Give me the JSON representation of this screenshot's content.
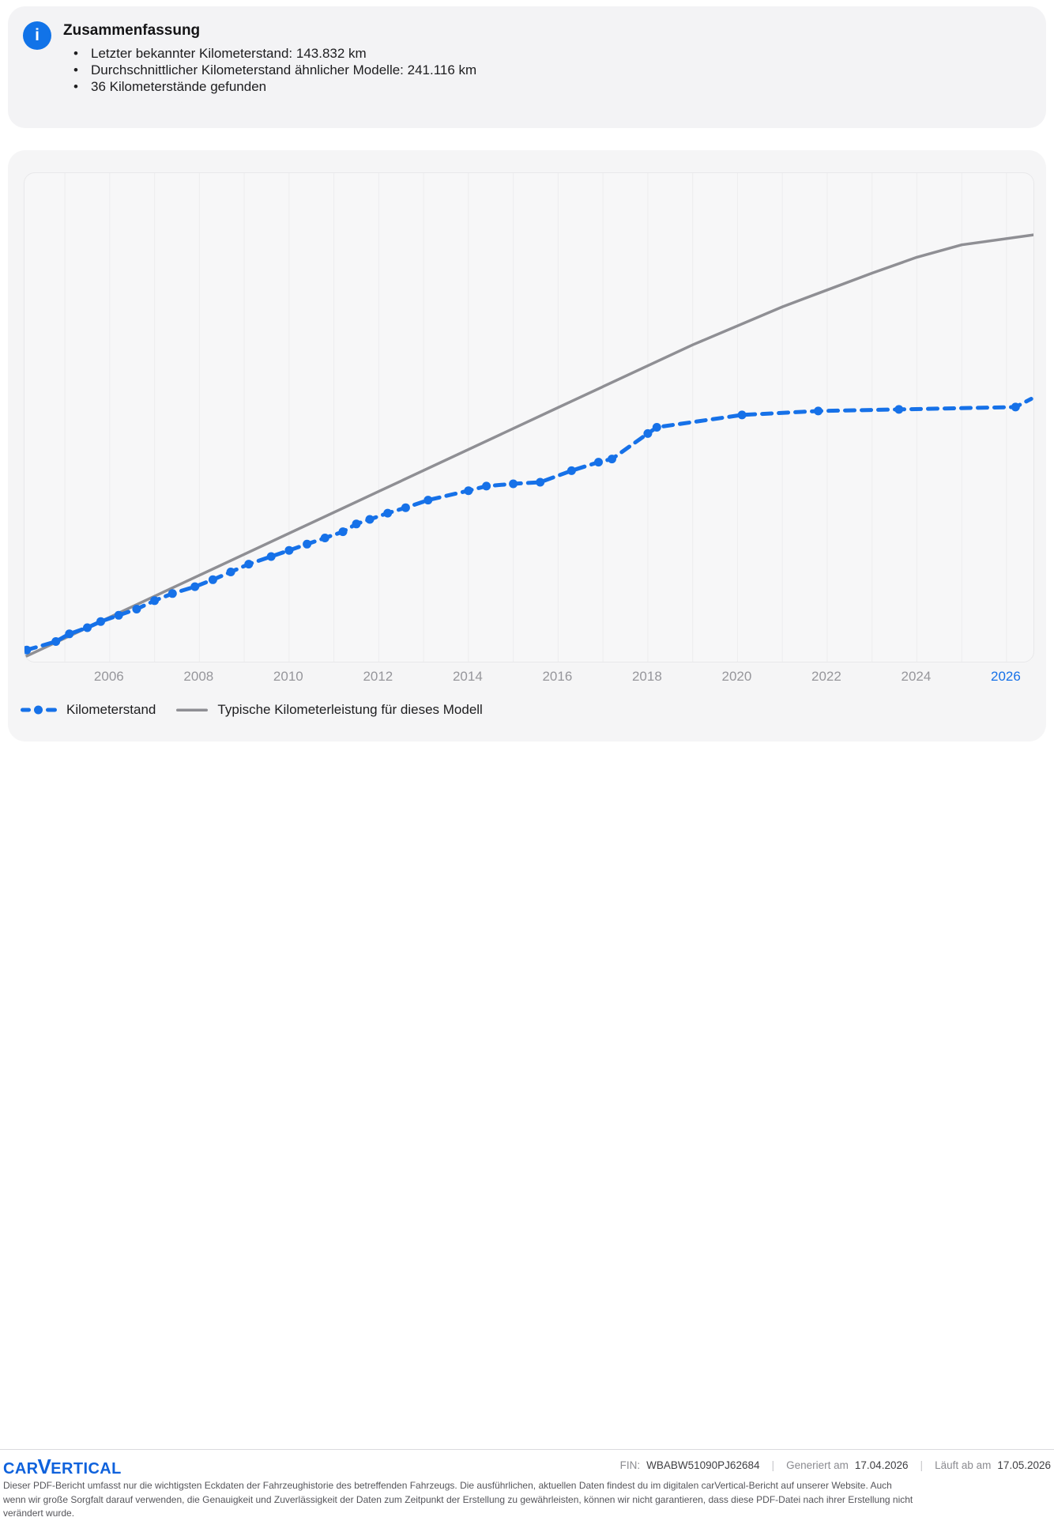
{
  "summary": {
    "title": "Zusammenfassung",
    "bullets": [
      "Letzter bekannter Kilometerstand: 143.832 km",
      "Durchschnittlicher Kilometerstand ähnlicher Modelle: 241.116 km",
      "36 Kilometerstände gefunden"
    ]
  },
  "colors": {
    "accent_blue": "#1671e8",
    "line_gray": "#8f8f94",
    "gridline": "#ededef",
    "brand_blue": "#0f62dc"
  },
  "chart_data": {
    "type": "line",
    "title": "",
    "xlabel": "",
    "ylabel": "",
    "xlim": [
      2004.1,
      2026.6
    ],
    "ylim_km": [
      0,
      276000
    ],
    "grid": "vertical-yearly",
    "legend_position": "bottom-left",
    "x_ticks": [
      {
        "year": 2006,
        "label": "2006"
      },
      {
        "year": 2008,
        "label": "2008"
      },
      {
        "year": 2010,
        "label": "2010"
      },
      {
        "year": 2012,
        "label": "2012"
      },
      {
        "year": 2014,
        "label": "2014"
      },
      {
        "year": 2016,
        "label": "2016"
      },
      {
        "year": 2018,
        "label": "2018"
      },
      {
        "year": 2020,
        "label": "2020"
      },
      {
        "year": 2022,
        "label": "2022"
      },
      {
        "year": 2024,
        "label": "2024"
      },
      {
        "year": 2026,
        "label": "2026",
        "highlight": true
      }
    ],
    "series": [
      {
        "name": "Kilometerstand",
        "color": "#1671e8",
        "style": "dashed-with-dots",
        "points": [
          [
            2004.15,
            6600
          ],
          [
            2004.8,
            11400
          ],
          [
            2005.1,
            15700
          ],
          [
            2005.5,
            19200
          ],
          [
            2005.8,
            22700
          ],
          [
            2006.2,
            26200
          ],
          [
            2006.6,
            29700
          ],
          [
            2007.0,
            34500
          ],
          [
            2007.4,
            38500
          ],
          [
            2007.9,
            42400
          ],
          [
            2008.3,
            46300
          ],
          [
            2008.7,
            50700
          ],
          [
            2009.1,
            55100
          ],
          [
            2009.6,
            59400
          ],
          [
            2010.0,
            62900
          ],
          [
            2010.4,
            66400
          ],
          [
            2010.8,
            69900
          ],
          [
            2011.2,
            73400
          ],
          [
            2011.5,
            77800
          ],
          [
            2011.8,
            80400
          ],
          [
            2012.2,
            83900
          ],
          [
            2012.6,
            87000
          ],
          [
            2013.1,
            91300
          ],
          [
            2014.0,
            96600
          ],
          [
            2014.4,
            99200
          ],
          [
            2015.0,
            100500
          ],
          [
            2015.6,
            101400
          ],
          [
            2016.3,
            107900
          ],
          [
            2016.9,
            112700
          ],
          [
            2017.2,
            114500
          ],
          [
            2018.0,
            128900
          ],
          [
            2018.2,
            132400
          ],
          [
            2020.1,
            139400
          ],
          [
            2021.8,
            141600
          ],
          [
            2023.6,
            142500
          ],
          [
            2026.2,
            143832
          ]
        ],
        "tail": [
          2026.55,
          148500
        ]
      },
      {
        "name": "Typische Kilometerleistung für dieses Modell",
        "color": "#8f8f94",
        "style": "solid",
        "points": [
          [
            2004.1,
            2600
          ],
          [
            2008.0,
            48800
          ],
          [
            2012.0,
            96200
          ],
          [
            2016.0,
            143600
          ],
          [
            2019.0,
            179000
          ],
          [
            2021.0,
            200500
          ],
          [
            2022.0,
            210000
          ],
          [
            2023.0,
            219500
          ],
          [
            2024.0,
            228500
          ],
          [
            2025.0,
            235500
          ],
          [
            2026.6,
            241116
          ]
        ]
      }
    ]
  },
  "footer": {
    "logo_pre": "CAR",
    "logo_v": "V",
    "logo_post": "ERTICAL",
    "fin_label": "FIN:",
    "fin_value": "WBABW51090PJ62684",
    "generated_label": "Generiert am",
    "generated_value": "17.04.2026",
    "expires_label": "Läuft ab am",
    "expires_value": "17.05.2026",
    "separator": "|",
    "disclaimer_lines": [
      "Dieser PDF-Bericht umfasst nur die wichtigsten Eckdaten der Fahrzeughistorie des betreffenden Fahrzeugs. Die ausführlichen, aktuellen Daten findest du im digitalen carVertical-Bericht auf unserer Website. Auch",
      "wenn wir große Sorgfalt darauf verwenden, die Genauigkeit und Zuverlässigkeit der Daten zum Zeitpunkt der Erstellung zu gewährleisten, können wir nicht garantieren, dass diese PDF-Datei nach ihrer Erstellung nicht",
      "verändert wurde."
    ]
  }
}
